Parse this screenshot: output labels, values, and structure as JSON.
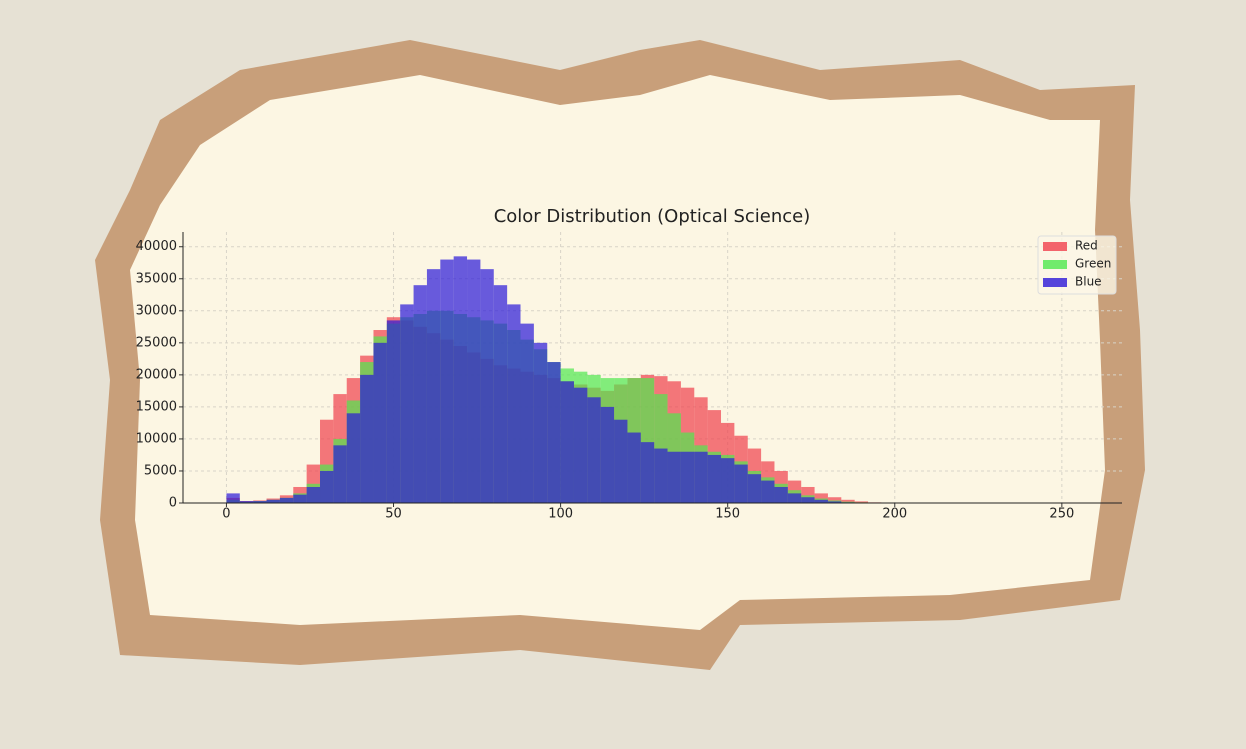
{
  "chart_data": {
    "type": "histogram",
    "title": "Color Distribution (Optical Science)",
    "bins": [
      0,
      4,
      8,
      12,
      16,
      20,
      24,
      28,
      32,
      36,
      40,
      44,
      48,
      52,
      56,
      60,
      64,
      68,
      72,
      76,
      80,
      84,
      88,
      92,
      96,
      100,
      104,
      108,
      112,
      116,
      120,
      124,
      128,
      132,
      136,
      140,
      144,
      148,
      152,
      156,
      160,
      164,
      168,
      172,
      176,
      180,
      184,
      188,
      192,
      196,
      200,
      204,
      208,
      212,
      216,
      220,
      224,
      228,
      232,
      236,
      240,
      244,
      248,
      252,
      256
    ],
    "series": [
      {
        "name": "Red",
        "color": "#f0404c",
        "values": [
          800,
          300,
          400,
          700,
          1200,
          2500,
          6000,
          13000,
          17000,
          19500,
          23000,
          27000,
          29000,
          28500,
          27500,
          26500,
          25500,
          24500,
          23500,
          22500,
          21500,
          21000,
          20500,
          20000,
          19500,
          19000,
          18500,
          18000,
          17500,
          18500,
          19500,
          20000,
          19800,
          19000,
          18000,
          16500,
          14500,
          12500,
          10500,
          8500,
          6500,
          5000,
          3500,
          2500,
          1500,
          900,
          500,
          250,
          100,
          40,
          0,
          0,
          0,
          0,
          0,
          0,
          0,
          0,
          0,
          0,
          0,
          0,
          0,
          0
        ]
      },
      {
        "name": "Green",
        "color": "#4ee84e",
        "values": [
          500,
          200,
          300,
          500,
          800,
          1500,
          3000,
          6000,
          10000,
          16000,
          22000,
          26000,
          28000,
          29000,
          29500,
          30000,
          30000,
          29500,
          29000,
          28500,
          28000,
          27000,
          25500,
          24000,
          22000,
          21000,
          20500,
          20000,
          19500,
          19500,
          19500,
          19500,
          17000,
          14000,
          11000,
          9000,
          8000,
          7500,
          6500,
          5000,
          4000,
          3000,
          2000,
          1200,
          700,
          400,
          200,
          100,
          40,
          10,
          0,
          0,
          0,
          0,
          0,
          0,
          0,
          0,
          0,
          0,
          0,
          0,
          0,
          0
        ]
      },
      {
        "name": "Blue",
        "color": "#2a18d8",
        "values": [
          1500,
          300,
          300,
          500,
          800,
          1300,
          2500,
          5000,
          9000,
          14000,
          20000,
          25000,
          28500,
          31000,
          34000,
          36500,
          38000,
          38500,
          38000,
          36500,
          34000,
          31000,
          28000,
          25000,
          22000,
          19000,
          18000,
          16500,
          15000,
          13000,
          11000,
          9500,
          8500,
          8000,
          8000,
          8000,
          7500,
          7000,
          6000,
          4500,
          3500,
          2500,
          1500,
          900,
          500,
          250,
          100,
          40,
          10,
          0,
          0,
          0,
          0,
          0,
          0,
          0,
          0,
          0,
          0,
          0,
          0,
          0,
          0,
          0
        ]
      }
    ],
    "xlim": [
      -13,
      268
    ],
    "ylim": [
      0,
      42300
    ],
    "xticks": [
      0,
      50,
      100,
      150,
      200,
      250
    ],
    "yticks": [
      0,
      5000,
      10000,
      15000,
      20000,
      25000,
      30000,
      35000,
      40000
    ],
    "grid": true,
    "legend": "upper right"
  }
}
